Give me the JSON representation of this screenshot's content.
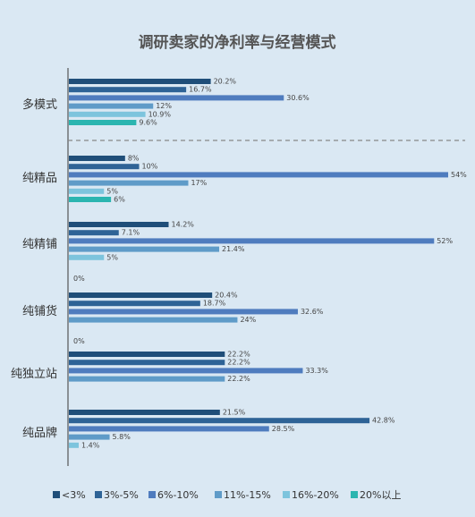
{
  "chart_data": {
    "type": "bar",
    "orientation": "horizontal",
    "title": "调研卖家的净利率与经营模式",
    "xlabel": "",
    "ylabel": "",
    "xlim": [
      0,
      54
    ],
    "grid": false,
    "legend_position": "bottom",
    "categories": [
      "多模式",
      "纯精品",
      "纯精铺",
      "纯铺货",
      "纯独立站",
      "纯品牌"
    ],
    "series": [
      {
        "name": "<3%",
        "color": "#1f4e79",
        "values": [
          20.2,
          8,
          14.2,
          20.4,
          22.2,
          21.5
        ],
        "labels": [
          "20.2%",
          "8%",
          "14.2%",
          "20.4%",
          "22.2%",
          "21.5%"
        ]
      },
      {
        "name": "3%-5%",
        "color": "#2e6396",
        "values": [
          16.7,
          10,
          7.1,
          18.7,
          22.2,
          42.8
        ],
        "labels": [
          "16.7%",
          "10%",
          "7.1%",
          "18.7%",
          "22.2%",
          "42.8%"
        ]
      },
      {
        "name": "6%-10%",
        "color": "#4f7cbe",
        "values": [
          30.6,
          54,
          52,
          32.6,
          33.3,
          28.5
        ],
        "labels": [
          "30.6%",
          "54%",
          "52%",
          "32.6%",
          "33.3%",
          "28.5%"
        ]
      },
      {
        "name": "11%-15%",
        "color": "#5f9bc8",
        "values": [
          12,
          17,
          21.4,
          24,
          22.2,
          5.8
        ],
        "labels": [
          "12%",
          "17%",
          "21.4%",
          "24%",
          "22.2%",
          "5.8%"
        ]
      },
      {
        "name": "16%-20%",
        "color": "#7dc4dd",
        "values": [
          10.9,
          5,
          5,
          0,
          null,
          1.4
        ],
        "labels": [
          "10.9%",
          "5%",
          "5%",
          "0%",
          null,
          "1.4%"
        ]
      },
      {
        "name": "20%以上",
        "color": "#2bb5b0",
        "values": [
          9.6,
          6,
          0,
          null,
          null,
          null
        ],
        "labels": [
          "9.6%",
          "6%",
          "0%",
          null,
          null,
          null
        ]
      }
    ]
  }
}
